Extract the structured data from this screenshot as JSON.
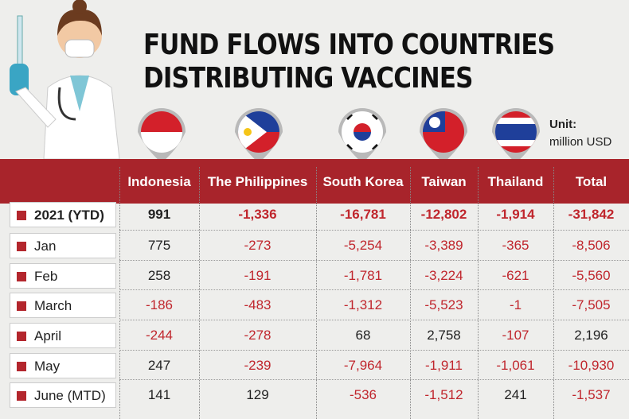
{
  "header": {
    "title_lines": [
      "FUND FLOWS INTO COUNTRIES",
      "DISTRIBUTING VACCINES"
    ],
    "unit_label": "Unit:",
    "unit": "million USD"
  },
  "table": {
    "columns": [
      "Indonesia",
      "The Philippines",
      "South Korea",
      "Taiwan",
      "Thailand",
      "Total"
    ],
    "rows": [
      {
        "label": "2021 (YTD)",
        "cells": [
          "991",
          "-1,336",
          "-16,781",
          "-12,802",
          "-1,914",
          "-31,842"
        ]
      },
      {
        "label": "Jan",
        "cells": [
          "775",
          "-273",
          "-5,254",
          "-3,389",
          "-365",
          "-8,506"
        ]
      },
      {
        "label": "Feb",
        "cells": [
          "258",
          "-191",
          "-1,781",
          "-3,224",
          "-621",
          "-5,560"
        ]
      },
      {
        "label": "March",
        "cells": [
          "-186",
          "-483",
          "-1,312",
          "-5,523",
          "-1",
          "-7,505"
        ]
      },
      {
        "label": "April",
        "cells": [
          "-244",
          "-278",
          "68",
          "2,758",
          "-107",
          "2,196"
        ]
      },
      {
        "label": "May",
        "cells": [
          "247",
          "-239",
          "-7,964",
          "-1,911",
          "-1,061",
          "-10,930"
        ]
      },
      {
        "label": "June (MTD)",
        "cells": [
          "141",
          "129",
          "-536",
          "-1,512",
          "241",
          "-1,537"
        ]
      }
    ]
  }
}
